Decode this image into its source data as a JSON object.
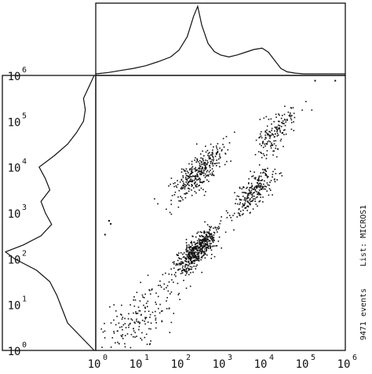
{
  "chart_data": {
    "type": "scatter",
    "title": "",
    "xlabel": "",
    "ylabel": "",
    "x_scale": "log",
    "y_scale": "log",
    "xlim": [
      1,
      1000000
    ],
    "ylim": [
      1,
      1000000
    ],
    "tick_base": "10",
    "tick_exponents": [
      "0",
      "1",
      "2",
      "3",
      "4",
      "5",
      "6"
    ],
    "side_annotation": {
      "list": "List: MICROS1",
      "events": "9471 events"
    },
    "clusters": [
      {
        "center": [
          10,
          5
        ],
        "spread": 0.35,
        "count": 220
      },
      {
        "center": [
          250,
          150
        ],
        "spread": 0.14,
        "count": 520
      },
      {
        "center": [
          300,
          8000
        ],
        "spread": 0.18,
        "count": 340
      },
      {
        "center": [
          6000,
          3000
        ],
        "spread": 0.15,
        "count": 240
      },
      {
        "center": [
          20000,
          60000
        ],
        "spread": 0.16,
        "count": 160
      }
    ],
    "outliers": [
      {
        "x": 2,
        "y": 700
      },
      {
        "x": 2.2,
        "y": 600
      },
      {
        "x": 1.6,
        "y": 350
      },
      {
        "x": 180000,
        "y": 800000
      },
      {
        "x": 550000,
        "y": 800000
      }
    ],
    "x_histogram": {
      "log_x": [
        0,
        0.3,
        0.6,
        0.9,
        1.2,
        1.5,
        1.8,
        2.0,
        2.2,
        2.35,
        2.45,
        2.55,
        2.7,
        2.85,
        3.0,
        3.2,
        3.4,
        3.6,
        3.8,
        4.0,
        4.15,
        4.3,
        4.45,
        4.6,
        4.8,
        5.0,
        5.5,
        6.0
      ],
      "frequency": [
        0.0,
        0.02,
        0.05,
        0.08,
        0.12,
        0.18,
        0.25,
        0.35,
        0.55,
        0.85,
        1.0,
        0.72,
        0.45,
        0.33,
        0.28,
        0.25,
        0.28,
        0.32,
        0.36,
        0.38,
        0.32,
        0.2,
        0.08,
        0.03,
        0.01,
        0.0,
        0.0,
        0.0
      ]
    },
    "y_histogram": {
      "log_y": [
        0,
        0.3,
        0.6,
        0.9,
        1.2,
        1.5,
        1.75,
        2.0,
        2.15,
        2.3,
        2.5,
        2.75,
        3.0,
        3.25,
        3.5,
        3.75,
        4.0,
        4.25,
        4.5,
        4.75,
        5.0,
        5.25,
        5.5,
        5.75,
        6.0
      ],
      "frequency": [
        0.0,
        0.15,
        0.3,
        0.36,
        0.42,
        0.5,
        0.65,
        0.9,
        1.0,
        0.8,
        0.6,
        0.48,
        0.55,
        0.6,
        0.5,
        0.55,
        0.62,
        0.45,
        0.3,
        0.2,
        0.12,
        0.1,
        0.12,
        0.06,
        0.0
      ]
    }
  }
}
